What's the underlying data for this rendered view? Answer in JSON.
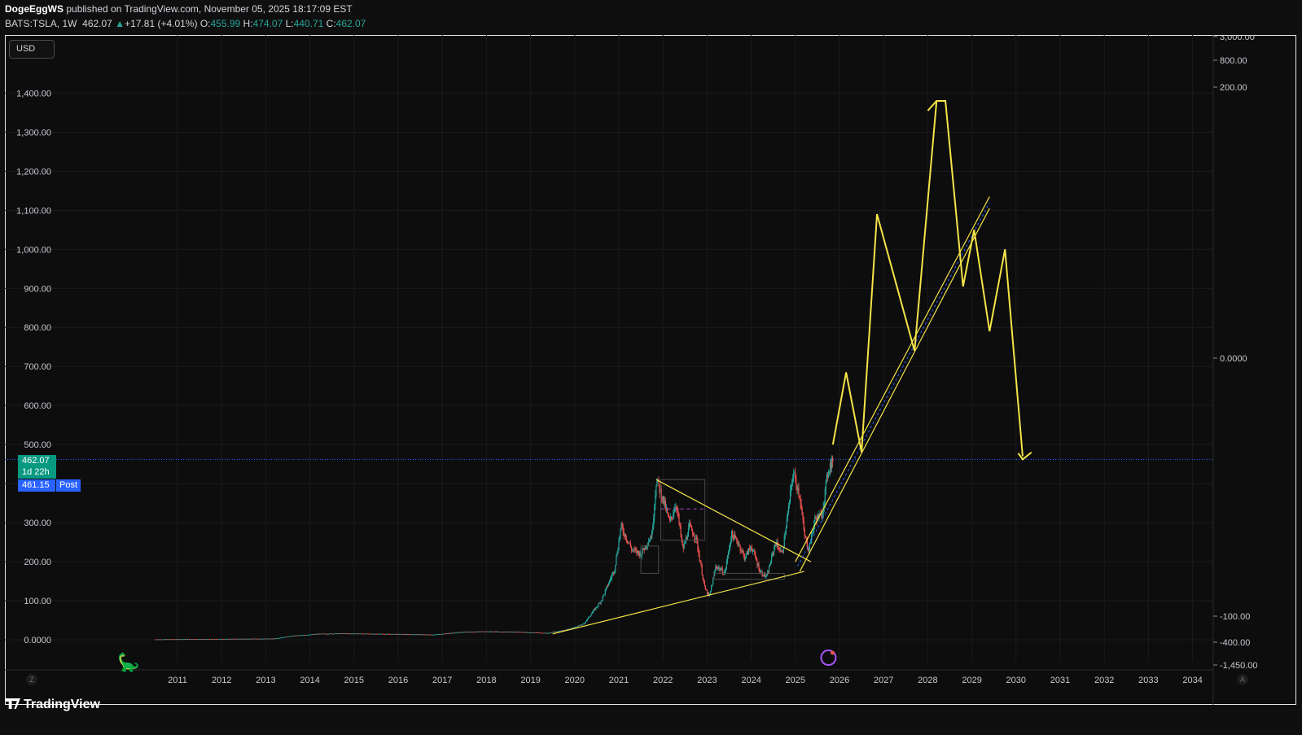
{
  "header": {
    "author": "DogeEggWS",
    "published_text": "published on TradingView.com, November 05, 2025 18:17:09 EST",
    "symbol": "BATS:TSLA, 1W",
    "last": "462.07",
    "change": "+17.81 (+4.01%)",
    "o_label": "O:",
    "o": "455.99",
    "h_label": "H:",
    "h": "474.07",
    "l_label": "L:",
    "l": "440.71",
    "c_label": "C:",
    "c": "462.07"
  },
  "currency_button": "USD",
  "price_tag": {
    "price": "462.07",
    "countdown": "1d 22h"
  },
  "post_tag": {
    "price": "461.15",
    "label": "Post"
  },
  "left_axis_labels": [
    "1,400.00",
    "1,300.00",
    "1,200.00",
    "1,100.00",
    "1,000.00",
    "900.00",
    "800.00",
    "700.00",
    "600.00",
    "500.00",
    "300.00",
    "200.00",
    "100.00",
    "0.0000"
  ],
  "right_axis_labels": [
    "3,000.00",
    "800.00",
    "200.00",
    "0.0000",
    "-100.00",
    "-400.00",
    "-1,450.00"
  ],
  "corner_left": "Z",
  "corner_right": "A",
  "footer_brand": "TradingView",
  "colors": {
    "background": "#0d0d0e",
    "up": "#26a69a",
    "down": "#ef5350",
    "drawing": "#f5e447",
    "price_line": "#2962ff",
    "countdown_bg": "#089981"
  },
  "chart_data": {
    "type": "candlestick",
    "symbol": "BATS:TSLA",
    "interval": "1W",
    "x_ticks": [
      "2011",
      "2012",
      "2013",
      "2014",
      "2015",
      "2016",
      "2017",
      "2018",
      "2019",
      "2020",
      "2021",
      "2022",
      "2023",
      "2024",
      "2025",
      "2026",
      "2027",
      "2028",
      "2029",
      "2030",
      "2031",
      "2032",
      "2033",
      "2034"
    ],
    "ylim": [
      -30,
      1550
    ],
    "price_history": [
      [
        2010.5,
        1
      ],
      [
        2012.0,
        2
      ],
      [
        2013.2,
        3
      ],
      [
        2013.6,
        10
      ],
      [
        2014.2,
        15
      ],
      [
        2014.8,
        16
      ],
      [
        2015.5,
        15
      ],
      [
        2016.2,
        14
      ],
      [
        2016.8,
        13
      ],
      [
        2017.5,
        20
      ],
      [
        2018.0,
        21
      ],
      [
        2018.7,
        20
      ],
      [
        2019.4,
        17
      ],
      [
        2019.9,
        28
      ],
      [
        2020.2,
        40
      ],
      [
        2020.6,
        100
      ],
      [
        2020.9,
        180
      ],
      [
        2021.05,
        290
      ],
      [
        2021.3,
        230
      ],
      [
        2021.5,
        220
      ],
      [
        2021.75,
        270
      ],
      [
        2021.85,
        410
      ],
      [
        2022.0,
        360
      ],
      [
        2022.15,
        300
      ],
      [
        2022.3,
        350
      ],
      [
        2022.45,
        230
      ],
      [
        2022.6,
        290
      ],
      [
        2022.75,
        260
      ],
      [
        2022.95,
        130
      ],
      [
        2023.05,
        110
      ],
      [
        2023.2,
        190
      ],
      [
        2023.4,
        170
      ],
      [
        2023.55,
        270
      ],
      [
        2023.7,
        250
      ],
      [
        2023.85,
        210
      ],
      [
        2024.0,
        240
      ],
      [
        2024.2,
        175
      ],
      [
        2024.35,
        160
      ],
      [
        2024.55,
        250
      ],
      [
        2024.7,
        220
      ],
      [
        2024.85,
        340
      ],
      [
        2024.95,
        430
      ],
      [
        2025.1,
        370
      ],
      [
        2025.2,
        270
      ],
      [
        2025.3,
        230
      ],
      [
        2025.45,
        310
      ],
      [
        2025.6,
        320
      ],
      [
        2025.75,
        440
      ],
      [
        2025.85,
        462.07
      ]
    ],
    "last_price": 462.07,
    "post_market_price": 461.15,
    "projection_path": [
      [
        2025.85,
        500
      ],
      [
        2026.15,
        685
      ],
      [
        2026.5,
        480
      ],
      [
        2026.85,
        1090
      ],
      [
        2027.7,
        740
      ],
      [
        2028.2,
        1380
      ],
      [
        2028.4,
        1380
      ],
      [
        2028.8,
        905
      ],
      [
        2029.05,
        1050
      ],
      [
        2029.4,
        790
      ],
      [
        2029.75,
        1000
      ],
      [
        2030.15,
        470
      ]
    ],
    "trendlines": [
      {
        "from": [
          2019.5,
          15
        ],
        "to": [
          2025.2,
          175
        ]
      },
      {
        "from": [
          2021.85,
          410
        ],
        "to": [
          2025.35,
          200
        ]
      },
      {
        "from": [
          2025.0,
          200
        ],
        "to": [
          2029.4,
          1135
        ]
      },
      {
        "from": [
          2025.1,
          175
        ],
        "to": [
          2029.4,
          1105
        ]
      }
    ]
  }
}
